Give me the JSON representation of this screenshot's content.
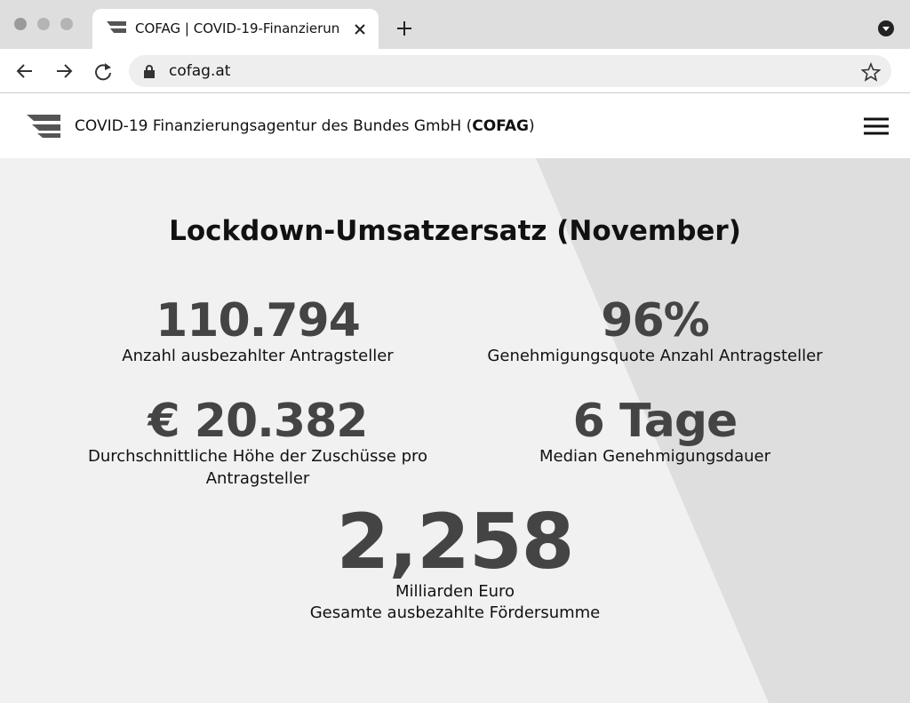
{
  "browser": {
    "tab_title": "COFAG | COVID-19-Finanzierun",
    "url": "cofag.at"
  },
  "header": {
    "name_prefix": "COVID-19 Finanzierungsagentur des Bundes GmbH (",
    "name_bold": "COFAG",
    "name_suffix": ")"
  },
  "page": {
    "title": "Lockdown-Umsatzersatz (November)",
    "stats": [
      {
        "value": "110.794",
        "label": "Anzahl ausbezahlter Antragsteller"
      },
      {
        "value": "96%",
        "label": "Genehmigungsquote Anzahl Antragsteller"
      },
      {
        "value": "€ 20.382",
        "label": "Durchschnittliche Höhe der Zuschüsse pro Antragsteller"
      },
      {
        "value": "6 Tage",
        "label": "Median Genehmigungsdauer"
      }
    ],
    "total": {
      "value": "2,258",
      "unit": "Milliarden Euro",
      "label": "Gesamte ausbezahlte Fördersumme"
    }
  }
}
